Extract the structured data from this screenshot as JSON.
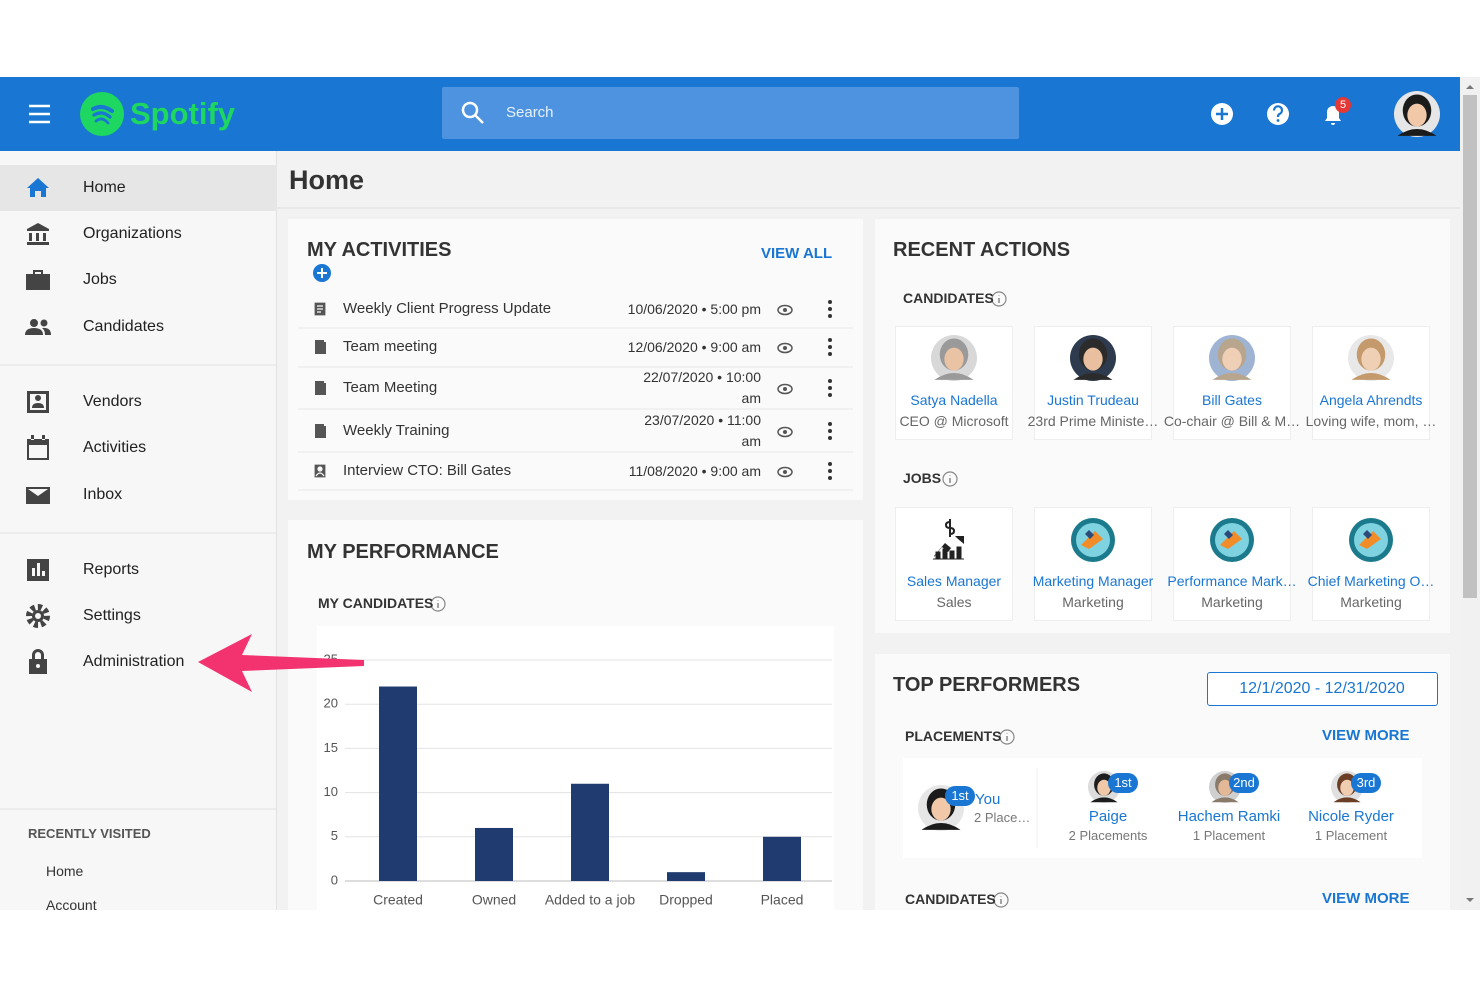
{
  "header": {
    "logo": "Spotify",
    "search_placeholder": "Search",
    "notification_count": 5
  },
  "sidebar": {
    "nav": [
      "Home",
      "Organizations",
      "Jobs",
      "Candidates",
      "Vendors",
      "Activities",
      "Inbox",
      "Reports",
      "Settings",
      "Administration"
    ],
    "recently_visited": {
      "title": "RECENTLY VISITED",
      "items": [
        "Home",
        "Account"
      ]
    }
  },
  "page_title": "Home",
  "my_activities": {
    "title": "MY ACTIVITIES",
    "view_all": "VIEW ALL",
    "rows": [
      {
        "title": "Weekly Client Progress Update",
        "when": "10/06/2020 • 5:00 pm"
      },
      {
        "title": "Team meeting",
        "when": "12/06/2020 • 9:00 am"
      },
      {
        "title": "Team Meeting",
        "when": "22/07/2020 • 10:00 am"
      },
      {
        "title": "Weekly Training",
        "when": "23/07/2020 • 11:00 am"
      },
      {
        "title": "Interview CTO: Bill Gates",
        "when": "11/08/2020 • 9:00 am"
      }
    ]
  },
  "my_performance": {
    "title": "MY PERFORMANCE",
    "subtitle": "MY CANDIDATES"
  },
  "chart_data": {
    "type": "bar",
    "categories": [
      "Created",
      "Owned",
      "Added to a job",
      "Dropped",
      "Placed"
    ],
    "values": [
      22,
      6,
      11,
      1,
      5
    ],
    "color": "#1f3b70",
    "ylim": [
      0,
      25
    ],
    "yticks": [
      0,
      5,
      10,
      15,
      20,
      25
    ],
    "grid": true
  },
  "recent_actions": {
    "title": "RECENT ACTIONS",
    "candidates_label": "CANDIDATES",
    "candidates": [
      {
        "name": "Satya Nadella",
        "role": "CEO @ Microsoft"
      },
      {
        "name": "Justin Trudeau",
        "role": "23rd Prime Ministe…"
      },
      {
        "name": "Bill Gates",
        "role": "Co-chair @ Bill & M…"
      },
      {
        "name": "Angela Ahrendts",
        "role": "Loving wife, mom, …"
      }
    ],
    "jobs_label": "JOBS",
    "jobs": [
      {
        "title": "Sales Manager",
        "dept": "Sales"
      },
      {
        "title": "Marketing Manager",
        "dept": "Marketing"
      },
      {
        "title": "Performance Mark…",
        "dept": "Marketing"
      },
      {
        "title": "Chief Marketing O…",
        "dept": "Marketing"
      }
    ]
  },
  "top_performers": {
    "title": "TOP PERFORMERS",
    "date_range": "12/1/2020 - 12/31/2020",
    "placements_label": "PLACEMENTS",
    "placements_view_more": "VIEW MORE",
    "performers": [
      {
        "rank": "1st",
        "name": "You",
        "detail": "2 Place…"
      },
      {
        "rank": "1st",
        "name": "Paige",
        "detail": "2 Placements"
      },
      {
        "rank": "2nd",
        "name": "Hachem Ramki",
        "detail": "1 Placement"
      },
      {
        "rank": "3rd",
        "name": "Nicole Ryder",
        "detail": "1 Placement"
      }
    ],
    "candidates_label": "CANDIDATES",
    "candidates_view_more": "VIEW MORE"
  }
}
